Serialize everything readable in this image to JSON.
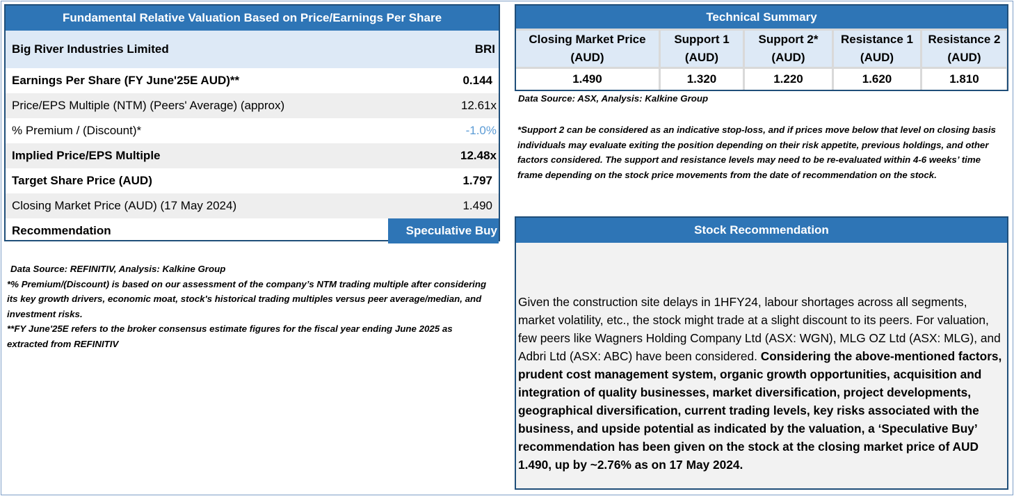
{
  "valuation": {
    "title": "Fundamental Relative Valuation Based on Price/Earnings Per Share",
    "company": "Big River Industries Limited",
    "ticker": "BRI",
    "rows": [
      {
        "label": "Earnings Per Share (FY June'25E AUD)**",
        "value": "0.144"
      },
      {
        "label": "Price/EPS Multiple (NTM) (Peers' Average) (approx)",
        "value": "12.61x"
      },
      {
        "label": "% Premium / (Discount)*",
        "value": "-1.0%"
      },
      {
        "label": "Implied Price/EPS Multiple",
        "value": "12.48x"
      },
      {
        "label": "Target Share Price (AUD)",
        "value": "1.797"
      },
      {
        "label": "Closing Market Price (AUD) (17 May 2024)",
        "value": "1.490"
      }
    ],
    "recommendation_label": "Recommendation",
    "recommendation_value": "Speculative Buy",
    "notes": {
      "source": "Data Source: REFINITIV, Analysis: Kalkine Group",
      "premium": "*% Premium/(Discount) is based on our assessment of the company’s NTM trading multiple after considering its key growth drivers, economic moat, stock's historical trading multiples versus peer average/median, and investment risks.",
      "fy": "**FY June'25E refers to the broker consensus estimate figures for the fiscal year ending June 2025 as extracted from REFINITIV"
    }
  },
  "technical": {
    "title": "Technical Summary",
    "columns": [
      {
        "l1": "Closing Market Price",
        "l2": "(AUD)",
        "value": "1.490"
      },
      {
        "l1": "Support 1",
        "l2": "(AUD)",
        "value": "1.320"
      },
      {
        "l1": "Support 2*",
        "l2": "(AUD)",
        "value": "1.220"
      },
      {
        "l1": "Resistance 1",
        "l2": "(AUD)",
        "value": "1.620"
      },
      {
        "l1": "Resistance 2",
        "l2": "(AUD)",
        "value": "1.810"
      }
    ],
    "source": "Data Source: ASX, Analysis: Kalkine Group",
    "note": "*Support 2 can be considered as an indicative stop-loss, and if prices move below that level on closing basis individuals may evaluate exiting the position depending on their risk appetite, previous holdings, and other factors considered. The support and resistance levels may need to be re-evaluated within 4-6 weeks’ time frame depending on the stock price movements from the date of recommendation on the stock."
  },
  "stock_recommendation": {
    "title": "Stock Recommendation",
    "text_plain": "Given the construction site delays in 1HFY24, labour shortages across all segments, market volatility, etc., the stock might trade at a slight discount to its peers. For valuation, few peers like Wagners Holding Company Ltd (ASX: WGN), MLG OZ Ltd (ASX: MLG), and Adbri Ltd (ASX: ABC) have been considered. ",
    "text_bold": "Considering the above-mentioned factors, prudent cost management system, organic growth opportunities, acquisition and integration of quality businesses, market diversification, project developments, geographical diversification, current trading levels, key risks associated with the business, and upside potential as indicated by the valuation, a ‘Speculative Buy’ recommendation has been given on the stock at the closing market price of AUD 1.490, up by ~2.76% as on 17 May 2024."
  },
  "colors": {
    "header_blue": "#2e75b6",
    "border_navy": "#1f4e79",
    "light_blue": "#dde9f6",
    "discount_blue": "#5b9bd5"
  }
}
